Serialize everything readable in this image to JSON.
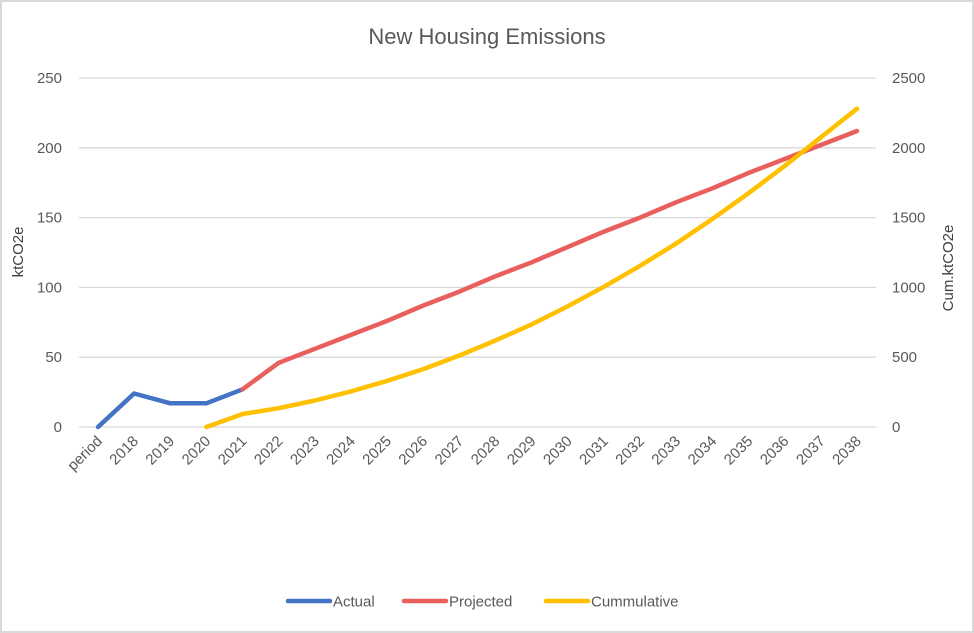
{
  "chart_data": {
    "type": "line",
    "title": "New Housing Emissions",
    "xlabel": "",
    "ylabel": "ktCO2e",
    "y2label": "Cum.ktCO2e",
    "ylim": [
      0,
      250
    ],
    "y2lim": [
      0,
      2500
    ],
    "yticks": [
      "0",
      "50",
      "100",
      "150",
      "200",
      "250"
    ],
    "y2ticks": [
      "0",
      "500",
      "1000",
      "1500",
      "2000",
      "2500"
    ],
    "grid": true,
    "legend_position": "bottom",
    "categories": [
      "period",
      "2018",
      "2019",
      "2020",
      "2021",
      "2022",
      "2023",
      "2024",
      "2025",
      "2026",
      "2027",
      "2028",
      "2029",
      "2030",
      "2031",
      "2032",
      "2033",
      "2034",
      "2035",
      "2036",
      "2037",
      "2038"
    ],
    "series": [
      {
        "name": "Actual",
        "axis": "left",
        "color": "#4472c4",
        "values": [
          0,
          24,
          17,
          17,
          27,
          null,
          null,
          null,
          null,
          null,
          null,
          null,
          null,
          null,
          null,
          null,
          null,
          null,
          null,
          null,
          null,
          null
        ]
      },
      {
        "name": "Projected",
        "axis": "left",
        "color": "#e95f5c",
        "values": [
          null,
          null,
          null,
          null,
          27,
          46,
          56,
          66,
          76,
          87,
          97,
          108,
          118,
          129,
          140,
          150,
          161,
          171,
          182,
          192,
          202,
          212
        ]
      },
      {
        "name": "Cummulative",
        "axis": "right",
        "color": "#ffc000",
        "values": [
          null,
          null,
          null,
          0,
          93,
          135,
          190,
          255,
          330,
          415,
          512,
          620,
          735,
          865,
          1005,
          1155,
          1315,
          1490,
          1675,
          1870,
          2075,
          2280
        ]
      }
    ]
  }
}
